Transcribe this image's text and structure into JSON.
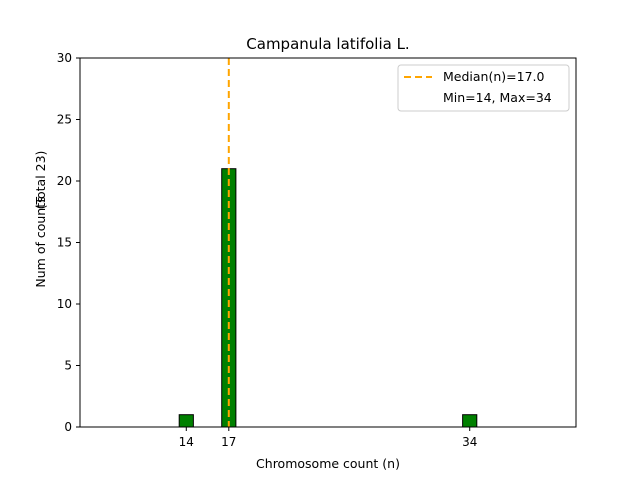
{
  "chart_data": {
    "type": "bar",
    "title": "Campanula latifolia L.",
    "xlabel": "Chromosome count (n)",
    "ylabel": "Num of counts",
    "ylabel_note": "(Total 23)",
    "x": [
      14,
      17,
      34
    ],
    "values": [
      1,
      21,
      1
    ],
    "xticks": [
      14,
      17,
      34
    ],
    "yticks": [
      0,
      5,
      10,
      15,
      20,
      25,
      30
    ],
    "xlim": [
      6.5,
      41.5
    ],
    "ylim": [
      0,
      30
    ],
    "bar_width": 1,
    "median": 17.0,
    "legend": {
      "placement": "top-right",
      "median_label": "Median(n)=17.0",
      "range_label": "Min=14, Max=34"
    },
    "grid": false,
    "colors": {
      "bar_fill": "#008000",
      "bar_edge": "#000000",
      "median_line": "#ffa500"
    }
  }
}
